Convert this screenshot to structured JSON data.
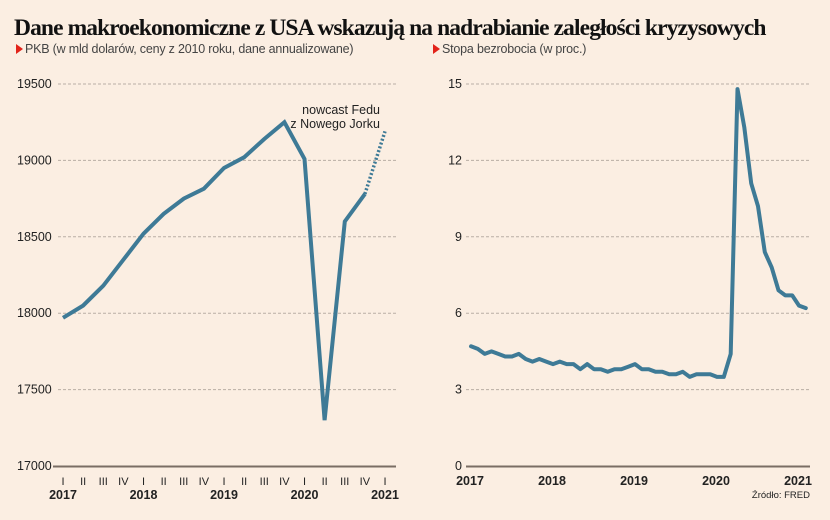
{
  "title": "Dane makroekonomiczne z USA wskazują na nadrabianie zaległości kryzysowych",
  "source": "Źródło: FRED",
  "colors": {
    "line": "#3e7a96",
    "marker": "#e2231a",
    "grid": "#b9aea5",
    "axis": "#7a6d64"
  },
  "chart_data": [
    {
      "type": "line",
      "title": "PKB (w mld dolarów, ceny z 2010 roku, dane annualizowane)",
      "xlabel": "",
      "ylabel": "",
      "ylim": [
        17000,
        19500
      ],
      "yticks": [
        17000,
        17500,
        18000,
        18500,
        19000,
        19500
      ],
      "grid": true,
      "quarter_labels": [
        "I",
        "II",
        "III",
        "IV",
        "I",
        "II",
        "III",
        "IV",
        "I",
        "II",
        "III",
        "IV",
        "I",
        "II",
        "III",
        "IV",
        "I"
      ],
      "year_labels": [
        "2017",
        "2018",
        "2019",
        "2020",
        "2021"
      ],
      "x": [
        "2017 I",
        "2017 II",
        "2017 III",
        "2017 IV",
        "2018 I",
        "2018 II",
        "2018 III",
        "2018 IV",
        "2019 I",
        "2019 II",
        "2019 III",
        "2019 IV",
        "2020 I",
        "2020 II",
        "2020 III",
        "2020 IV",
        "2021 I"
      ],
      "series": [
        {
          "name": "PKB",
          "style": "solid",
          "values": [
            17970,
            18050,
            18180,
            18350,
            18520,
            18650,
            18750,
            18815,
            18950,
            19020,
            19140,
            19250,
            19010,
            17300,
            18600,
            18780,
            null
          ]
        },
        {
          "name": "nowcast Fedu z Nowego Jorku",
          "style": "dotted",
          "values": [
            null,
            null,
            null,
            null,
            null,
            null,
            null,
            null,
            null,
            null,
            null,
            null,
            null,
            null,
            null,
            18780,
            19190
          ]
        }
      ],
      "annotation": [
        "nowcast Fedu",
        "z Nowego Jorku"
      ]
    },
    {
      "type": "line",
      "title": "Stopa bezrobocia (w proc.)",
      "xlabel": "",
      "ylabel": "",
      "ylim": [
        0,
        15
      ],
      "yticks": [
        0,
        3,
        6,
        9,
        12,
        15
      ],
      "grid": true,
      "year_labels": [
        "2017",
        "2018",
        "2019",
        "2020",
        "2021"
      ],
      "x_start": "2017-01",
      "x_freq": "monthly",
      "series": [
        {
          "name": "Stopa bezrobocia",
          "values": [
            4.7,
            4.6,
            4.4,
            4.5,
            4.4,
            4.3,
            4.3,
            4.4,
            4.2,
            4.1,
            4.2,
            4.1,
            4.0,
            4.1,
            4.0,
            4.0,
            3.8,
            4.0,
            3.8,
            3.8,
            3.7,
            3.8,
            3.8,
            3.9,
            4.0,
            3.8,
            3.8,
            3.7,
            3.7,
            3.6,
            3.6,
            3.7,
            3.5,
            3.6,
            3.6,
            3.6,
            3.5,
            3.5,
            4.4,
            14.8,
            13.3,
            11.1,
            10.2,
            8.4,
            7.8,
            6.9,
            6.7,
            6.7,
            6.3,
            6.2
          ]
        }
      ]
    }
  ]
}
